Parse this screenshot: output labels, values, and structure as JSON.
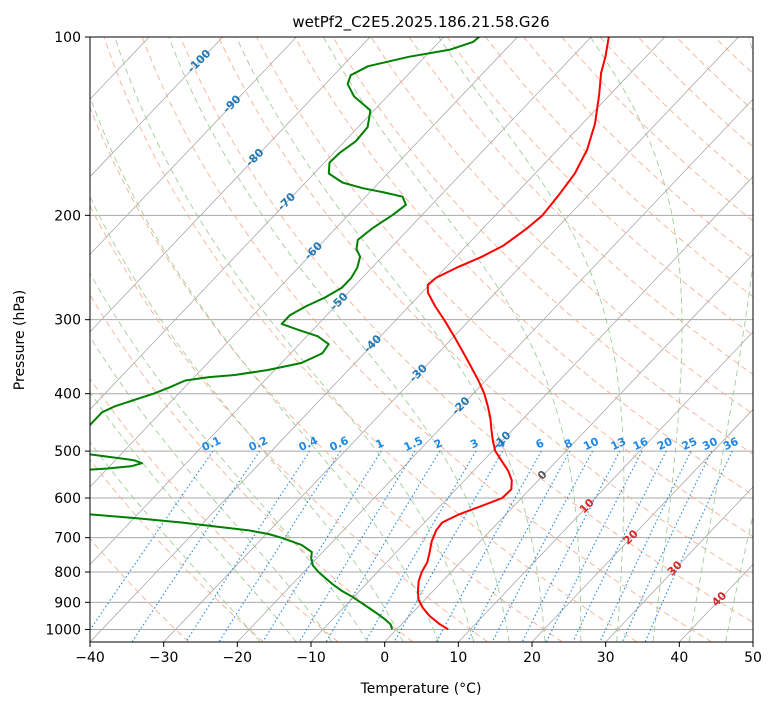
{
  "chart_data": {
    "type": "line",
    "subtype": "skew-t log-p sounding",
    "title": "wetPf2_C2E5.2025.186.21.58.G26",
    "xlabel": "Temperature (°C)",
    "ylabel": "Pressure (hPa)",
    "xlim": [
      -40,
      50
    ],
    "ylim": [
      1050,
      100
    ],
    "y_scale": "log",
    "x_ticks": [
      -40,
      -30,
      -20,
      -10,
      0,
      10,
      20,
      30,
      40,
      50
    ],
    "x_tick_labels": [
      "−40",
      "−30",
      "−20",
      "−10",
      "0",
      "10",
      "20",
      "30",
      "40",
      "50"
    ],
    "y_ticks": [
      100,
      200,
      300,
      400,
      500,
      600,
      700,
      800,
      900,
      1000
    ],
    "y_tick_labels": [
      "100",
      "200",
      "300",
      "400",
      "500",
      "600",
      "700",
      "800",
      "900",
      "1000"
    ],
    "grid": true,
    "series": [
      {
        "color": "#ff0000",
        "points": [
          [
            1000,
            7
          ],
          [
            980,
            5.2
          ],
          [
            950,
            2.8
          ],
          [
            920,
            0.8
          ],
          [
            890,
            -0.9
          ],
          [
            860,
            -2.1
          ],
          [
            830,
            -3.2
          ],
          [
            800,
            -4
          ],
          [
            770,
            -4.5
          ],
          [
            740,
            -5.5
          ],
          [
            710,
            -6.6
          ],
          [
            680,
            -7.4
          ],
          [
            660,
            -7.6
          ],
          [
            640,
            -6.4
          ],
          [
            620,
            -4.5
          ],
          [
            600,
            -2.6
          ],
          [
            580,
            -2.5
          ],
          [
            560,
            -3.6
          ],
          [
            540,
            -5.3
          ],
          [
            520,
            -7.4
          ],
          [
            500,
            -9.6
          ],
          [
            480,
            -11.3
          ],
          [
            460,
            -12.9
          ],
          [
            440,
            -14.5
          ],
          [
            420,
            -16.4
          ],
          [
            400,
            -18.5
          ],
          [
            380,
            -21
          ],
          [
            360,
            -23.8
          ],
          [
            340,
            -26.8
          ],
          [
            320,
            -30
          ],
          [
            300,
            -33.5
          ],
          [
            285,
            -36.4
          ],
          [
            270,
            -39.2
          ],
          [
            262,
            -40.2
          ],
          [
            255,
            -40
          ],
          [
            245,
            -38.5
          ],
          [
            235,
            -36.5
          ],
          [
            225,
            -35
          ],
          [
            210,
            -34
          ],
          [
            200,
            -33.6
          ],
          [
            185,
            -34
          ],
          [
            170,
            -34.6
          ],
          [
            155,
            -36
          ],
          [
            140,
            -38.3
          ],
          [
            125,
            -41.5
          ],
          [
            115,
            -44
          ],
          [
            108,
            -45.5
          ],
          [
            100,
            -47.6
          ]
        ]
      },
      {
        "color": "#008000",
        "points": [
          [
            1000,
            -0.6
          ],
          [
            980,
            -1.5
          ],
          [
            960,
            -3
          ],
          [
            940,
            -4.7
          ],
          [
            920,
            -6.5
          ],
          [
            900,
            -8.4
          ],
          [
            880,
            -10.3
          ],
          [
            860,
            -12.5
          ],
          [
            840,
            -14.4
          ],
          [
            820,
            -16.2
          ],
          [
            800,
            -18
          ],
          [
            780,
            -19.6
          ],
          [
            760,
            -20.7
          ],
          [
            740,
            -21.5
          ],
          [
            720,
            -23.8
          ],
          [
            700,
            -27.5
          ],
          [
            690,
            -29.7
          ],
          [
            680,
            -33
          ],
          [
            670,
            -38
          ],
          [
            660,
            -43
          ],
          [
            650,
            -49
          ],
          [
            640,
            -56
          ],
          [
            630,
            -64
          ],
          [
            625,
            -70
          ],
          [
            545,
            -70
          ],
          [
            535,
            -60
          ],
          [
            530,
            -57
          ],
          [
            524,
            -56
          ],
          [
            518,
            -57.5
          ],
          [
            510,
            -62
          ],
          [
            500,
            -68
          ],
          [
            430,
            -68
          ],
          [
            420,
            -67
          ],
          [
            400,
            -63.4
          ],
          [
            390,
            -62
          ],
          [
            380,
            -60.8
          ],
          [
            375,
            -58
          ],
          [
            372,
            -54.8
          ],
          [
            365,
            -51
          ],
          [
            355,
            -47.3
          ],
          [
            342,
            -45.7
          ],
          [
            330,
            -46
          ],
          [
            320,
            -48.5
          ],
          [
            312,
            -52
          ],
          [
            305,
            -55
          ],
          [
            295,
            -55
          ],
          [
            285,
            -54
          ],
          [
            275,
            -52.5
          ],
          [
            265,
            -51.5
          ],
          [
            255,
            -51.5
          ],
          [
            245,
            -52
          ],
          [
            235,
            -53
          ],
          [
            228,
            -54.5
          ],
          [
            220,
            -55.5
          ],
          [
            210,
            -55
          ],
          [
            200,
            -54
          ],
          [
            192,
            -53.5
          ],
          [
            186,
            -55
          ],
          [
            183,
            -58
          ],
          [
            180,
            -61.5
          ],
          [
            176,
            -65
          ],
          [
            170,
            -68
          ],
          [
            163,
            -69.3
          ],
          [
            157,
            -69.2
          ],
          [
            150,
            -68.5
          ],
          [
            142,
            -68.7
          ],
          [
            133,
            -70.5
          ],
          [
            126,
            -74.5
          ],
          [
            120,
            -77
          ],
          [
            116,
            -77.7
          ],
          [
            112,
            -76.5
          ],
          [
            108,
            -72.2
          ],
          [
            105,
            -67.5
          ],
          [
            102,
            -65.4
          ],
          [
            100,
            -65.2
          ]
        ]
      }
    ],
    "isotherm_step": 10,
    "dry_adiabat_thetas": [
      -30,
      -20,
      -10,
      0,
      10,
      20,
      30,
      40,
      50,
      60,
      70,
      80,
      90,
      100,
      110,
      120,
      130,
      140,
      150,
      160,
      170,
      180,
      190,
      200,
      210,
      220,
      230,
      240,
      250,
      260,
      270,
      280,
      290,
      300
    ],
    "moist_adiabat_starts": [
      -20,
      -15,
      -10,
      -5,
      0,
      5,
      10,
      15,
      20,
      25,
      30,
      35,
      40,
      45
    ],
    "mixing_ratios": [
      0.1,
      0.2,
      0.4,
      0.6,
      1,
      1.5,
      2,
      3,
      4,
      6,
      8,
      10,
      13,
      16,
      20,
      25,
      30,
      36
    ],
    "mixing_ratio_labels": [
      "0.1",
      "0.2",
      "0.4",
      "0.6",
      "1",
      "1.5",
      "2",
      "3",
      "4",
      "6",
      "8",
      "10",
      "13",
      "16",
      "20",
      "25",
      "30",
      "36"
    ],
    "iso_labels": [
      {
        "text": "-100",
        "p": 110,
        "t": -100,
        "color": "#1f77b4"
      },
      {
        "text": "-90",
        "p": 130,
        "t": -90,
        "color": "#1f77b4"
      },
      {
        "text": "-80",
        "p": 160,
        "t": -80,
        "color": "#1f77b4"
      },
      {
        "text": "-70",
        "p": 190,
        "t": -70,
        "color": "#1f77b4"
      },
      {
        "text": "-60",
        "p": 230,
        "t": -60,
        "color": "#1f77b4"
      },
      {
        "text": "-50",
        "p": 280,
        "t": -50,
        "color": "#1f77b4"
      },
      {
        "text": "-40",
        "p": 330,
        "t": -40,
        "color": "#1f77b4"
      },
      {
        "text": "-30",
        "p": 370,
        "t": -30,
        "color": "#1f77b4"
      },
      {
        "text": "-20",
        "p": 420,
        "t": -20,
        "color": "#1f77b4"
      },
      {
        "text": "-10",
        "p": 480,
        "t": -10,
        "color": "#1f77b4"
      },
      {
        "text": "0",
        "p": 550,
        "t": 0,
        "color": "#555555"
      },
      {
        "text": "10",
        "p": 620,
        "t": 10,
        "color": "#d62728"
      },
      {
        "text": "20",
        "p": 700,
        "t": 20,
        "color": "#d62728"
      },
      {
        "text": "30",
        "p": 790,
        "t": 30,
        "color": "#d62728"
      },
      {
        "text": "40",
        "p": 890,
        "t": 40,
        "color": "#d62728"
      }
    ],
    "colors": {
      "temperature": "#ff0000",
      "dewpoint": "#008000",
      "isotherm": "#a9a9a9",
      "dry_adiabat": "#f4a582",
      "moist_adiabat": "#98c890",
      "mixing_ratio": "#1e88e5",
      "isobar": "#a9a9a9",
      "frame": "#000000"
    }
  }
}
